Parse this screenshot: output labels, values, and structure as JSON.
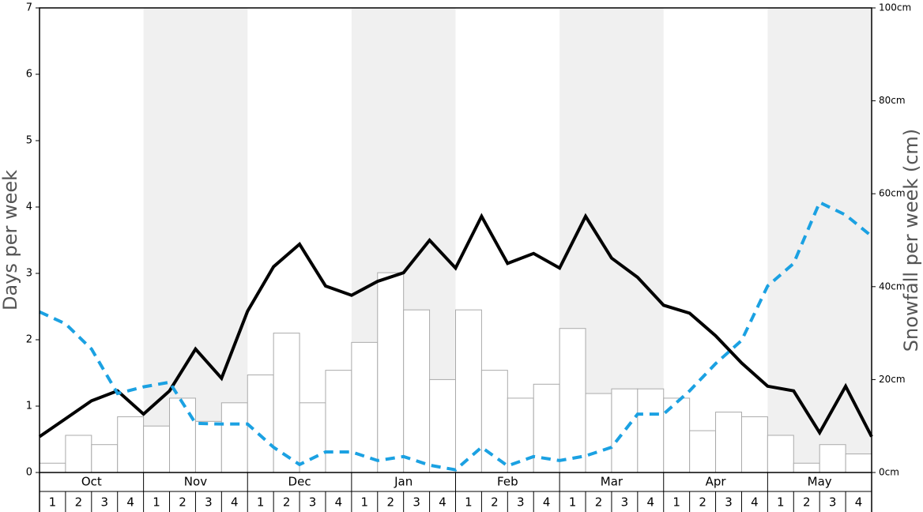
{
  "chart_data": {
    "type": "combo",
    "ylabel": "Days per week",
    "y2label": "Snowfall per week (cm)",
    "months": [
      "Oct",
      "Nov",
      "Dec",
      "Jan",
      "Feb",
      "Mar",
      "Apr",
      "May"
    ],
    "categories": [
      "1",
      "2",
      "3",
      "4",
      "1",
      "2",
      "3",
      "4",
      "1",
      "2",
      "3",
      "4",
      "1",
      "2",
      "3",
      "4",
      "1",
      "2",
      "3",
      "4",
      "1",
      "2",
      "3",
      "4",
      "1",
      "2",
      "3",
      "4",
      "1",
      "2",
      "3",
      "4"
    ],
    "x": [
      0,
      1,
      2,
      3,
      4,
      5,
      6,
      7,
      8,
      9,
      10,
      11,
      12,
      13,
      14,
      15,
      16,
      17,
      18,
      19,
      20,
      21,
      22,
      23,
      24,
      25,
      26,
      27,
      28,
      29,
      30,
      31,
      32
    ],
    "xlim": [
      0,
      32
    ],
    "ylim": [
      0,
      7
    ],
    "yticks": [
      0,
      1,
      2,
      3,
      4,
      5,
      6,
      7
    ],
    "y2lim": [
      0,
      100
    ],
    "y2ticks": [
      {
        "value": 0,
        "label": "0cm"
      },
      {
        "value": 20,
        "label": "20cm"
      },
      {
        "value": 40,
        "label": "40cm"
      },
      {
        "value": 60,
        "label": "60cm"
      },
      {
        "value": 80,
        "label": "80cm"
      },
      {
        "value": 100,
        "label": "100cm"
      }
    ],
    "band_color": "#f0f0f0",
    "series": [
      {
        "type": "bar",
        "axis": "y2",
        "color": "#ffffff",
        "stroke": "#aaaaaa",
        "values": [
          2,
          8,
          6,
          12,
          10,
          16,
          11,
          15,
          21,
          30,
          15,
          22,
          28,
          43,
          35,
          20,
          35,
          22,
          16,
          19,
          31,
          17,
          18,
          18,
          16,
          9,
          13,
          12,
          8,
          2,
          6,
          4
        ]
      },
      {
        "type": "line",
        "color": "#000000",
        "dashed": false,
        "values": [
          0.54,
          0.81,
          1.08,
          1.23,
          0.88,
          1.23,
          1.86,
          1.42,
          2.43,
          3.1,
          3.44,
          2.81,
          2.67,
          2.88,
          3.01,
          3.5,
          3.08,
          3.86,
          3.15,
          3.3,
          3.08,
          3.86,
          3.23,
          2.94,
          2.52,
          2.4,
          2.06,
          1.65,
          1.3,
          1.23,
          0.6,
          1.3,
          0.54
        ]
      },
      {
        "type": "line",
        "color": "#1ba1e2",
        "dashed": true,
        "values": [
          2.42,
          2.24,
          1.86,
          1.19,
          1.29,
          1.36,
          0.74,
          0.73,
          0.73,
          0.38,
          0.12,
          0.31,
          0.31,
          0.18,
          0.24,
          0.11,
          0.04,
          0.38,
          0.1,
          0.24,
          0.18,
          0.25,
          0.38,
          0.88,
          0.88,
          1.23,
          1.64,
          1.99,
          2.81,
          3.15,
          4.07,
          3.88,
          3.56
        ]
      }
    ]
  }
}
